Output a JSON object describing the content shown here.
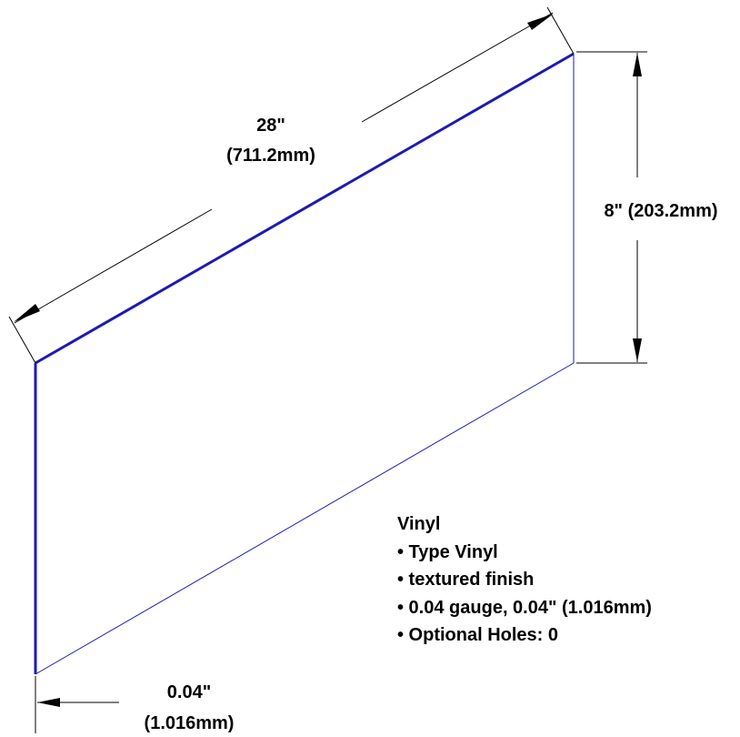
{
  "dimensions": {
    "length_in": "28\"",
    "length_mm": "(711.2mm)",
    "height": "8\" (203.2mm)",
    "thickness_in": "0.04\"",
    "thickness_mm": "(1.016mm)"
  },
  "spec": {
    "material": "Vinyl",
    "items": [
      "• Type Vinyl",
      "• textured finish",
      "• 0.04 gauge, 0.04\" (1.016mm)",
      "• Optional Holes: 0"
    ]
  },
  "colors": {
    "panel_edge": "#1a1ab8",
    "dimension_line": "#000000"
  }
}
